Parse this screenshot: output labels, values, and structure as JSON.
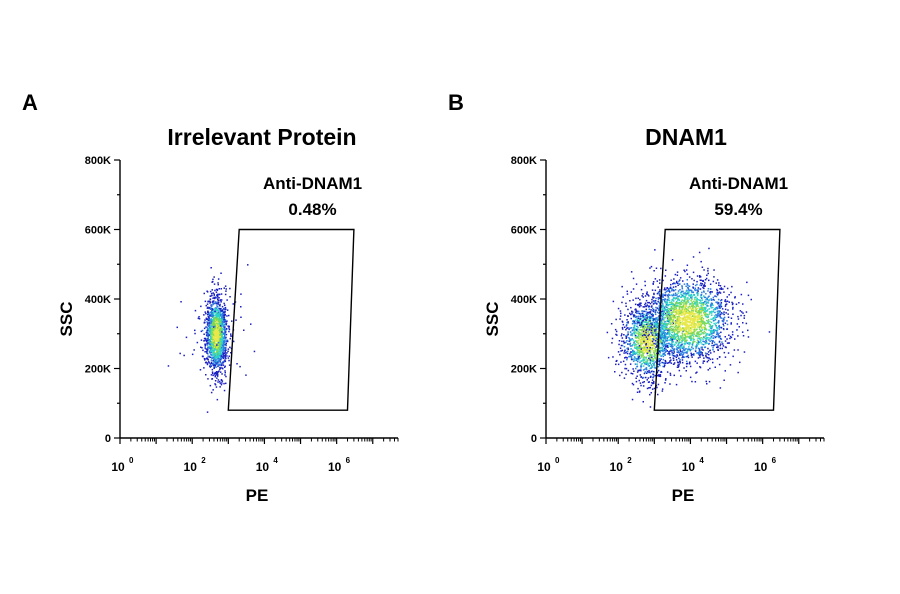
{
  "chart_data": [
    {
      "type": "scatter",
      "panel_letter": "A",
      "title": "Irrelevant Protein",
      "xlabel": "PE",
      "ylabel": "SSC",
      "x_scale": "log10",
      "xlim": [
        1,
        50000000
      ],
      "ylim": [
        0,
        800000
      ],
      "x_ticks": [
        {
          "base": "10",
          "exp": "0"
        },
        {
          "base": "10",
          "exp": "2"
        },
        {
          "base": "10",
          "exp": "4"
        },
        {
          "base": "10",
          "exp": "6"
        }
      ],
      "y_ticks": [
        "0",
        "200K",
        "400K",
        "600K",
        "800K"
      ],
      "gate": {
        "name": "Anti-DNAM1",
        "percent": "0.48%",
        "vertices": [
          [
            2000,
            600000
          ],
          [
            3000000,
            600000
          ],
          [
            2000000,
            80000
          ],
          [
            1000,
            80000
          ]
        ]
      },
      "populations": [
        {
          "center_log10_pe": 2.65,
          "sd_log10_pe": 0.15,
          "center_ssc": 300000,
          "sd_ssc": 55000,
          "count": 1400
        },
        {
          "center_log10_pe": 2.6,
          "sd_log10_pe": 0.5,
          "center_ssc": 300000,
          "sd_ssc": 80000,
          "count": 60
        }
      ],
      "grid": false
    },
    {
      "type": "scatter",
      "panel_letter": "B",
      "title": "DNAM1",
      "xlabel": "PE",
      "ylabel": "SSC",
      "x_scale": "log10",
      "xlim": [
        1,
        50000000
      ],
      "ylim": [
        0,
        800000
      ],
      "x_ticks": [
        {
          "base": "10",
          "exp": "0"
        },
        {
          "base": "10",
          "exp": "2"
        },
        {
          "base": "10",
          "exp": "4"
        },
        {
          "base": "10",
          "exp": "6"
        }
      ],
      "y_ticks": [
        "0",
        "200K",
        "400K",
        "600K",
        "800K"
      ],
      "gate": {
        "name": "Anti-DNAM1",
        "percent": "59.4%",
        "vertices": [
          [
            2000,
            600000
          ],
          [
            3000000,
            600000
          ],
          [
            2000000,
            80000
          ],
          [
            1000,
            80000
          ]
        ]
      },
      "populations": [
        {
          "center_log10_pe": 2.8,
          "sd_log10_pe": 0.35,
          "center_ssc": 280000,
          "sd_ssc": 55000,
          "count": 1300
        },
        {
          "center_log10_pe": 3.9,
          "sd_log10_pe": 0.6,
          "center_ssc": 340000,
          "sd_ssc": 60000,
          "count": 2200
        }
      ],
      "grid": false
    }
  ]
}
